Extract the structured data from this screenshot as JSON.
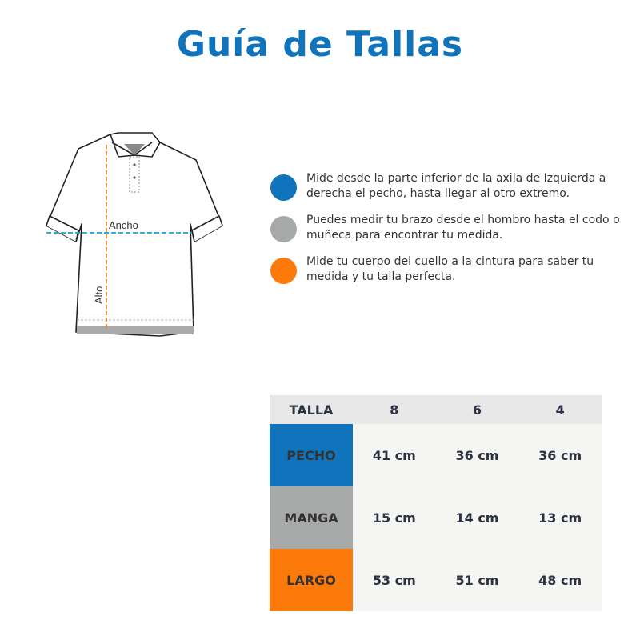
{
  "title": "Guía de Tallas",
  "shirt": {
    "width_label": "Ancho",
    "height_label": "Alto"
  },
  "legend": [
    {
      "color": "#0f74bc",
      "text": "Mide desde la parte inferior de la axila de Izquierda a derecha el pecho, hasta llegar al otro extremo."
    },
    {
      "color": "#a7a9a8",
      "text": "Puedes medir tu brazo desde el hombro hasta el codo o muñeca para encontrar tu medida."
    },
    {
      "color": "#fb7a0a",
      "text": "Mide tu cuerpo del cuello a la cintura para saber tu medida y tu talla perfecta."
    }
  ],
  "table": {
    "headers": [
      "TALLA",
      "8",
      "6",
      "4"
    ],
    "rows": [
      {
        "label": "PECHO",
        "color": "#0f74bc",
        "values": [
          "41 cm",
          "36 cm",
          "36 cm"
        ]
      },
      {
        "label": "MANGA",
        "color": "#a7a9a8",
        "values": [
          "15 cm",
          "14 cm",
          "13 cm"
        ]
      },
      {
        "label": "LARGO",
        "color": "#fb7a0a",
        "values": [
          "53 cm",
          "51 cm",
          "48 cm"
        ]
      }
    ]
  }
}
